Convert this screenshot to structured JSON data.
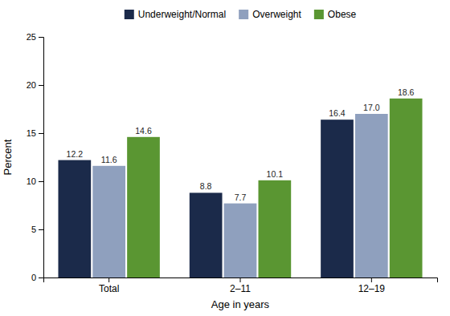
{
  "chart_data": {
    "type": "bar",
    "categories": [
      "Total",
      "2–11",
      "12–19"
    ],
    "series": [
      {
        "name": "Underweight/Normal",
        "color": "#1b2a4a",
        "values": [
          12.2,
          8.8,
          16.4
        ],
        "value_labels": [
          "12.2",
          "8.8",
          "16.4"
        ]
      },
      {
        "name": "Overweight",
        "color": "#8fa0be",
        "values": [
          11.6,
          7.7,
          17.0
        ],
        "value_labels": [
          "11.6",
          "7.7",
          "17.0"
        ]
      },
      {
        "name": "Obese",
        "color": "#5a9632",
        "values": [
          14.6,
          10.1,
          18.6
        ],
        "value_labels": [
          "14.6",
          "10.1",
          "18.6"
        ]
      }
    ],
    "xlabel": "Age in years",
    "ylabel": "Percent",
    "ylim": [
      0,
      25
    ],
    "yticks": [
      0,
      5,
      10,
      15,
      20,
      25
    ],
    "grid": false,
    "legend": "top",
    "data_labels": true
  }
}
